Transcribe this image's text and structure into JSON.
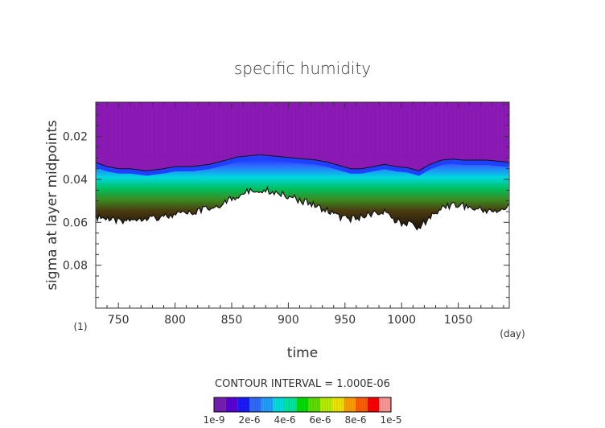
{
  "chart_data": {
    "type": "heatmap",
    "title": "specific humidity",
    "xlabel": "time",
    "ylabel": "sigma at layer midpoints",
    "x_unit_label": "(day)",
    "y_unit_label": "(1)",
    "xlim": [
      730,
      1095
    ],
    "ylim": [
      0.004,
      0.1
    ],
    "y_inverted": true,
    "x_ticks": [
      750,
      800,
      850,
      900,
      950,
      1000,
      1050
    ],
    "y_ticks": [
      0.02,
      0.04,
      0.06,
      0.08
    ],
    "y_tick_labels": [
      "0.02",
      "0.04",
      "0.06",
      "0.08"
    ],
    "contour_interval_label": "CONTOUR INTERVAL = 1.000E-06",
    "colorbar_labels": [
      "1e-9",
      "2e-6",
      "4e-6",
      "6e-6",
      "8e-6",
      "1e-5"
    ],
    "colorbar_colors": [
      "#7a1fb4",
      "#5a00d8",
      "#1a1aff",
      "#2f6bff",
      "#22a0ff",
      "#00e0e0",
      "#00e8a0",
      "#00e000",
      "#5fe000",
      "#b8f000",
      "#f0e800",
      "#ffa000",
      "#ff6000",
      "#ff0000",
      "#ff9a9a"
    ],
    "field_color": "#8b1ab4",
    "moist_boundary": {
      "x": [
        730,
        740,
        750,
        760,
        775,
        790,
        800,
        815,
        830,
        845,
        855,
        865,
        875,
        885,
        895,
        905,
        915,
        925,
        935,
        945,
        955,
        965,
        975,
        985,
        995,
        1005,
        1015,
        1025,
        1035,
        1045,
        1055,
        1065,
        1075,
        1085,
        1095
      ],
      "y": [
        0.032,
        0.034,
        0.035,
        0.035,
        0.036,
        0.035,
        0.034,
        0.034,
        0.033,
        0.031,
        0.0295,
        0.029,
        0.0285,
        0.029,
        0.0295,
        0.03,
        0.0305,
        0.031,
        0.032,
        0.0335,
        0.035,
        0.035,
        0.034,
        0.033,
        0.034,
        0.0345,
        0.036,
        0.033,
        0.031,
        0.0305,
        0.031,
        0.031,
        0.031,
        0.0315,
        0.032
      ]
    },
    "lower_boundary": {
      "x": [
        730,
        740,
        750,
        760,
        775,
        790,
        800,
        815,
        830,
        845,
        855,
        865,
        875,
        885,
        895,
        905,
        915,
        925,
        935,
        945,
        955,
        965,
        975,
        985,
        995,
        1005,
        1015,
        1025,
        1035,
        1045,
        1055,
        1065,
        1075,
        1085,
        1095
      ],
      "y": [
        0.057,
        0.058,
        0.059,
        0.058,
        0.057,
        0.057,
        0.056,
        0.055,
        0.053,
        0.05,
        0.047,
        0.045,
        0.044,
        0.045,
        0.046,
        0.048,
        0.05,
        0.052,
        0.054,
        0.057,
        0.058,
        0.057,
        0.055,
        0.055,
        0.059,
        0.06,
        0.062,
        0.057,
        0.053,
        0.051,
        0.052,
        0.053,
        0.054,
        0.054,
        0.052
      ]
    }
  }
}
